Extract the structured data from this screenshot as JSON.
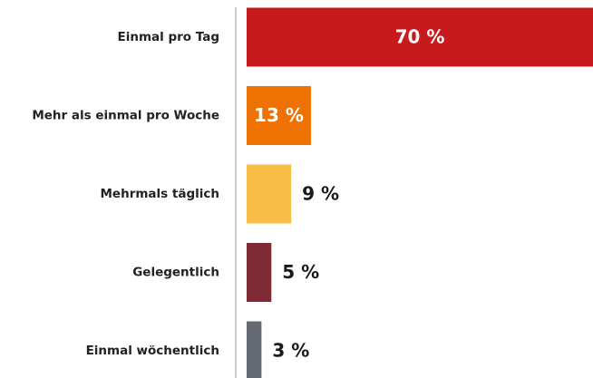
{
  "chart_data": {
    "type": "barh",
    "categories": [
      "Einmal pro Tag",
      "Mehr als einmal pro Woche",
      "Mehrmals täglich",
      "Gelegentlich",
      "Einmal wöchentlich"
    ],
    "values": [
      70,
      13,
      9,
      5,
      3
    ],
    "value_labels": [
      "70 %",
      "13 %",
      "9 %",
      "5 %",
      "3 %"
    ],
    "colors": [
      "#c8191c",
      "#ee7203",
      "#f9bd46",
      "#7d2a34",
      "#666a73"
    ],
    "xlim": [
      0,
      70
    ]
  }
}
